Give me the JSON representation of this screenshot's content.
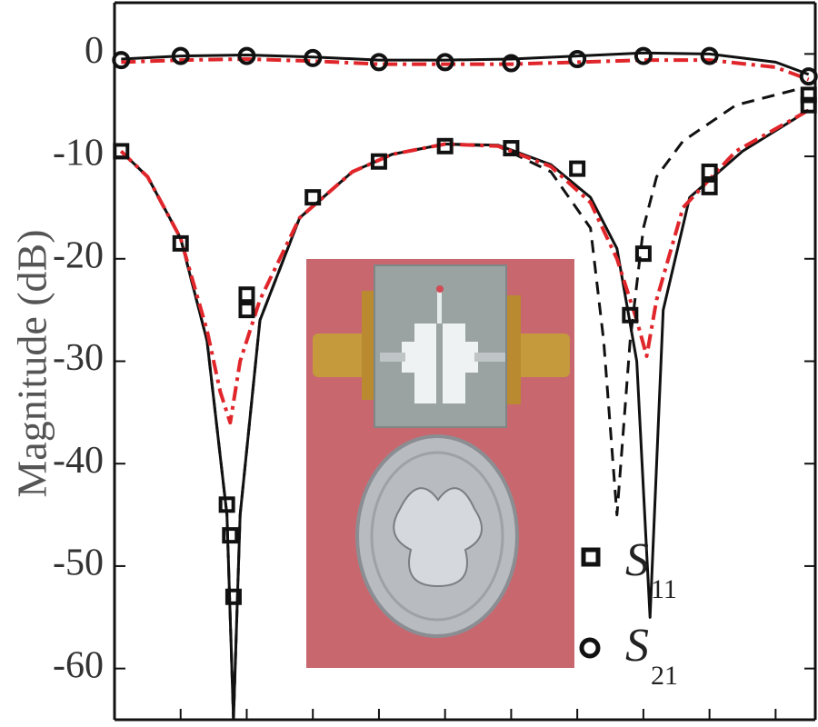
{
  "chart_data": {
    "type": "line",
    "title": "",
    "xlabel": "",
    "ylabel": "Magnitude (dB)",
    "ylim": [
      -65,
      5
    ],
    "xlim": [
      0,
      10.6
    ],
    "yticks": [
      0,
      -10,
      -20,
      -30,
      -40,
      -50,
      -60
    ],
    "ytick_labels": [
      "0",
      "-10",
      "-20",
      "-30",
      "-40",
      "-50",
      "-60"
    ],
    "xticks": [
      0,
      1,
      2,
      3,
      4,
      5,
      6,
      7,
      8,
      9,
      10
    ],
    "grid": false,
    "legend_position": "bottom-right",
    "legend": [
      {
        "symbol": "S",
        "subscript": "11",
        "marker": "square"
      },
      {
        "symbol": "S",
        "subscript": "21",
        "marker": "circle"
      }
    ],
    "inset_photo": {
      "description_kind": "photo",
      "background_color": "#c9676f",
      "board_color": "#9aa3a2",
      "connector_color": "#c49a3c",
      "coin_color": "#b8bcc0"
    },
    "series": [
      {
        "kind": "S11-simulated",
        "color": "#111111",
        "style": "solid",
        "x": [
          0.1,
          0.5,
          1.0,
          1.4,
          1.7,
          1.8,
          1.9,
          2.2,
          2.8,
          3.6,
          4.2,
          5.0,
          5.8,
          6.6,
          7.2,
          7.6,
          7.9,
          8.1,
          8.3,
          8.7,
          9.5,
          10.5
        ],
        "y": [
          -9.5,
          -12,
          -18,
          -28,
          -45,
          -65,
          -45,
          -26,
          -16,
          -11.5,
          -9.8,
          -8.8,
          -8.9,
          -10.8,
          -14,
          -19,
          -30,
          -55,
          -25,
          -14,
          -9.5,
          -5.5
        ]
      },
      {
        "kind": "S11-dashed",
        "color": "#111111",
        "style": "dashed",
        "x": [
          0.1,
          0.5,
          1.0,
          1.4,
          1.7,
          1.8,
          1.9,
          2.2,
          2.8,
          3.6,
          4.2,
          5.0,
          5.8,
          6.6,
          7.2,
          7.4,
          7.6,
          7.8,
          8.0,
          8.2,
          8.6,
          9.4,
          10.3
        ],
        "y": [
          -9.5,
          -12,
          -18,
          -28,
          -45,
          -65,
          -45,
          -26,
          -16,
          -11.5,
          -9.8,
          -8.8,
          -9.0,
          -11.5,
          -17,
          -28,
          -45,
          -28,
          -17,
          -12,
          -8.5,
          -5,
          -3.5
        ]
      },
      {
        "kind": "S11-measured-red",
        "color": "#e0262b",
        "style": "dashdot",
        "x": [
          0.1,
          0.5,
          1.0,
          1.4,
          1.6,
          1.75,
          1.9,
          2.2,
          2.8,
          3.6,
          4.2,
          5.0,
          5.8,
          6.6,
          7.2,
          7.6,
          7.9,
          8.05,
          8.2,
          8.6,
          9.4,
          10.5
        ],
        "y": [
          -9.5,
          -12,
          -18,
          -27,
          -33,
          -36,
          -30,
          -24,
          -16,
          -11.5,
          -9.8,
          -8.8,
          -9.0,
          -11,
          -14.5,
          -20,
          -26,
          -29.5,
          -24,
          -15,
          -9.5,
          -5.5
        ]
      },
      {
        "kind": "S21-simulated",
        "color": "#111111",
        "style": "solid",
        "x": [
          0.1,
          1.0,
          2.0,
          3.0,
          4.0,
          5.0,
          6.0,
          7.0,
          8.0,
          9.0,
          10.0,
          10.5
        ],
        "y": [
          -0.5,
          -0.2,
          -0.1,
          -0.3,
          -0.6,
          -0.6,
          -0.5,
          -0.2,
          0.1,
          0.0,
          -0.8,
          -2.0
        ]
      },
      {
        "kind": "S21-measured-red",
        "color": "#e0262b",
        "style": "dashdot",
        "x": [
          0.1,
          1.0,
          2.0,
          3.0,
          4.0,
          5.0,
          6.0,
          7.0,
          8.0,
          9.0,
          10.0,
          10.5
        ],
        "y": [
          -0.8,
          -0.6,
          -0.5,
          -0.7,
          -1.0,
          -1.0,
          -1.0,
          -0.8,
          -0.6,
          -0.6,
          -1.3,
          -2.5
        ]
      }
    ],
    "markers": [
      {
        "marker": "square",
        "x": [
          0.1,
          1.0,
          2.0,
          3.0,
          4.0,
          5.0,
          6.0,
          7.0,
          8.0,
          9.0,
          10.5
        ],
        "y": [
          -9.5,
          -18.5,
          -25,
          -14,
          -10.5,
          -9.0,
          -9.2,
          -11.2,
          -19.5,
          -13,
          -5
        ]
      },
      {
        "marker": "square",
        "x": [
          1.7,
          1.75,
          1.8,
          2.0,
          7.8,
          9.0,
          10.5
        ],
        "y": [
          -44,
          -47,
          -53,
          -23.5,
          -25.5,
          -11.5,
          -4
        ]
      },
      {
        "marker": "circle",
        "x": [
          0.1,
          1.0,
          2.0,
          3.0,
          4.0,
          5.0,
          6.0,
          7.0,
          8.0,
          9.0,
          10.5
        ],
        "y": [
          -0.6,
          -0.2,
          -0.2,
          -0.4,
          -0.8,
          -0.8,
          -0.9,
          -0.5,
          -0.2,
          -0.2,
          -2.2
        ]
      }
    ]
  }
}
